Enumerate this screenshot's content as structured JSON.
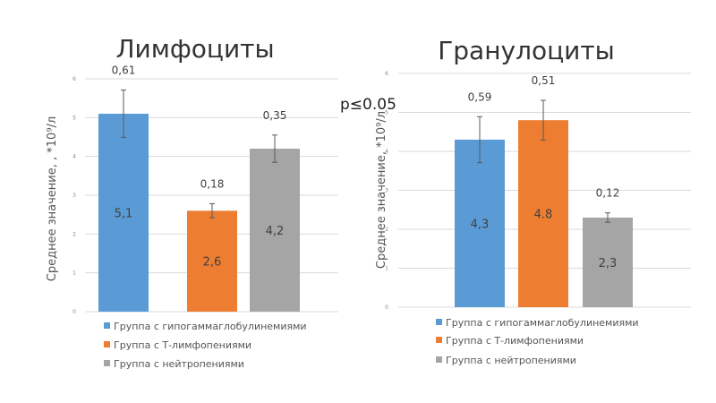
{
  "p_value_text": "p≤0.05",
  "legend": [
    {
      "label": "Группа с гипогаммаглобулинемиями",
      "color": "#5B9BD5"
    },
    {
      "label": "Группа с Т-лимфопениями",
      "color": "#ED7D31"
    },
    {
      "label": "Группа с нейтропениями",
      "color": "#A5A5A5"
    }
  ],
  "chart_data": [
    {
      "type": "bar",
      "title": "Лимфоциты",
      "ylabel": "Среднее значение, , *10⁹/л",
      "ylim": [
        0,
        6
      ],
      "yticks": [
        "0",
        "1",
        "2",
        "3",
        "4",
        "5",
        "6"
      ],
      "grid": true,
      "legend_position": "bottom",
      "series": [
        {
          "name": "Группа с гипогаммаглобулинемиями",
          "value": 5.1,
          "value_label": "5,1",
          "error": 0.61,
          "error_label": "0,61",
          "color": "#5B9BD5"
        },
        {
          "name": "Группа с Т-лимфопениями",
          "value": 2.6,
          "value_label": "2,6",
          "error": 0.18,
          "error_label": "0,18",
          "color": "#ED7D31"
        },
        {
          "name": "Группа с нейтропениями",
          "value": 4.2,
          "value_label": "4,2",
          "error": 0.35,
          "error_label": "0,35",
          "color": "#A5A5A5"
        }
      ]
    },
    {
      "type": "bar",
      "title": "Гранулоциты",
      "ylabel": "Среднее значение, *10⁹/л",
      "ylim": [
        0,
        6
      ],
      "yticks": [
        "0",
        "1",
        "2",
        "3",
        "4",
        "5",
        "6"
      ],
      "grid": true,
      "legend_position": "bottom",
      "series": [
        {
          "name": "Группа с гипогаммаглобулинемиями",
          "value": 4.3,
          "value_label": "4,3",
          "error": 0.59,
          "error_label": "0,59",
          "color": "#5B9BD5"
        },
        {
          "name": "Группа с Т-лимфопениями",
          "value": 4.8,
          "value_label": "4.8",
          "error": 0.51,
          "error_label": "0,51",
          "color": "#ED7D31"
        },
        {
          "name": "Группа с нейтропениями",
          "value": 2.3,
          "value_label": "2,3",
          "error": 0.12,
          "error_label": "0,12",
          "color": "#A5A5A5"
        }
      ]
    }
  ]
}
